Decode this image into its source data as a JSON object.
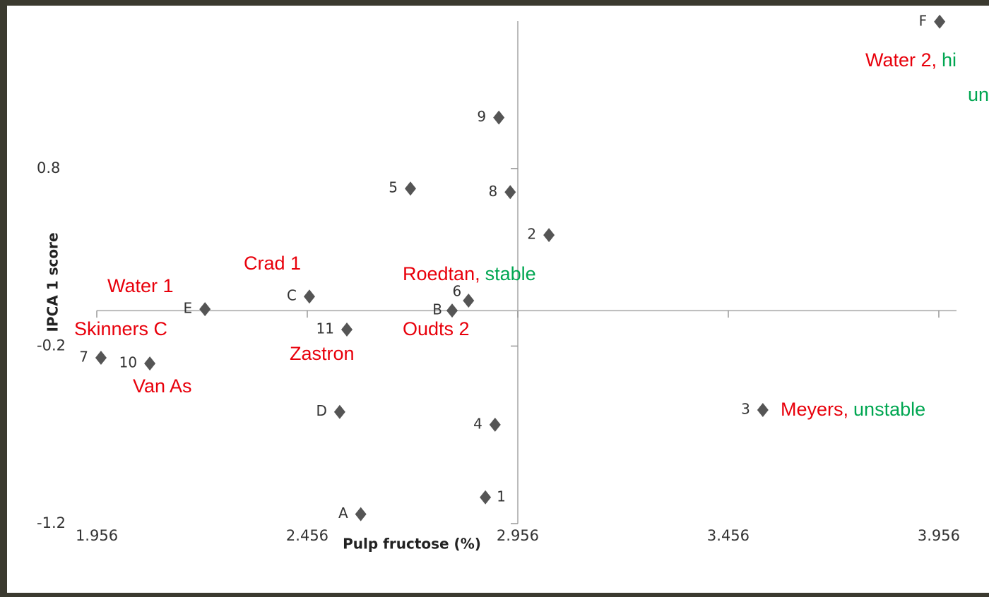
{
  "chart_data": {
    "type": "scatter",
    "xlabel": "Pulp fructose (%)",
    "ylabel": "IPCA 1 score",
    "xlim": [
      1.956,
      3.998
    ],
    "ylim": [
      -1.2,
      1.63
    ],
    "xticks": [
      1.956,
      2.456,
      2.956,
      3.456,
      3.956
    ],
    "yticks": [
      0.8,
      -0.2,
      -1.2
    ],
    "x_axis_at": 0,
    "y_axis_at": 2.956,
    "marker_color": "#555555",
    "series": [
      {
        "labels": [
          "F",
          "9",
          "5",
          "8",
          "2",
          "C",
          "E",
          "B",
          "6",
          "11",
          "7",
          "10",
          "D",
          "4",
          "3",
          "1",
          "A"
        ],
        "x": [
          3.958,
          2.911,
          2.701,
          2.938,
          3.03,
          2.461,
          2.213,
          2.8,
          2.839,
          2.55,
          1.966,
          2.082,
          2.533,
          2.902,
          3.538,
          2.879,
          2.583
        ],
        "values": [
          1.627,
          1.087,
          0.687,
          0.667,
          0.425,
          0.079,
          0.008,
          0.0,
          0.056,
          -0.107,
          -0.266,
          -0.298,
          -0.571,
          -0.643,
          -0.56,
          -1.052,
          -1.147
        ]
      }
    ],
    "annotations": [
      {
        "parts": [
          {
            "text": "Water 2,",
            "color": "#e8000b"
          },
          {
            "text": "hi",
            "color": "#00a651"
          }
        ]
      },
      {
        "parts": [
          {
            "text": "un",
            "color": "#00a651"
          }
        ]
      },
      {
        "parts": [
          {
            "text": "Crad 1",
            "color": "#e8000b"
          }
        ]
      },
      {
        "parts": [
          {
            "text": "Water 1",
            "color": "#e8000b"
          }
        ]
      },
      {
        "parts": [
          {
            "text": "Roedtan,",
            "color": "#e8000b"
          },
          {
            "text": "stable",
            "color": "#00a651"
          }
        ]
      },
      {
        "parts": [
          {
            "text": "Skinners C",
            "color": "#e8000b"
          }
        ]
      },
      {
        "parts": [
          {
            "text": "Oudts 2",
            "color": "#e8000b"
          }
        ]
      },
      {
        "parts": [
          {
            "text": "Zastron",
            "color": "#e8000b"
          }
        ]
      },
      {
        "parts": [
          {
            "text": "Van As",
            "color": "#e8000b"
          }
        ]
      },
      {
        "parts": [
          {
            "text": "Meyers,",
            "color": "#e8000b"
          },
          {
            "text": "unstable",
            "color": "#00a651"
          }
        ]
      }
    ]
  }
}
